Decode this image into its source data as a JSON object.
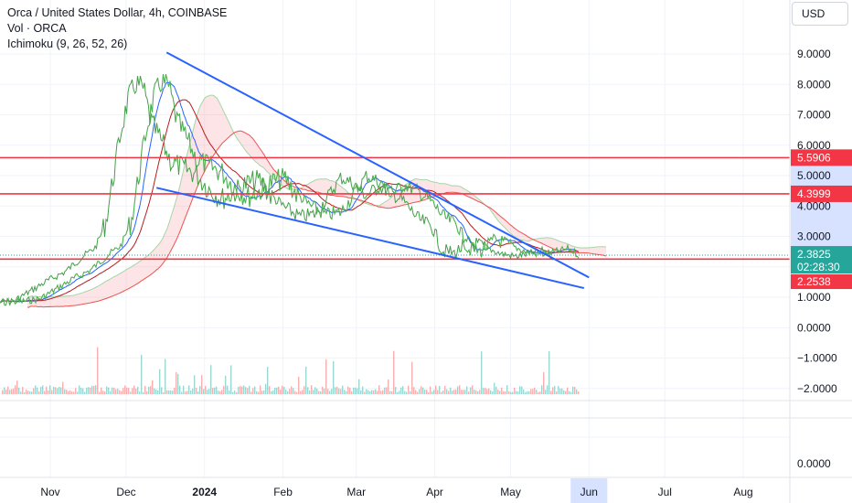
{
  "chart_data": {
    "type": "line",
    "title": "Orca / United States Dollar, 4h, COINBASE",
    "indicators": [
      "Vol · ORCA",
      "Ichimoku (9, 26, 52, 26)"
    ],
    "currency": "USD",
    "x_ticks": [
      "Nov",
      "Dec",
      "2024",
      "Feb",
      "Mar",
      "Apr",
      "May",
      "Jun",
      "Jul",
      "Aug"
    ],
    "y_ticks": [
      "9.0000",
      "8.0000",
      "7.0000",
      "6.0000",
      "5.0000",
      "4.0000",
      "3.0000",
      "1.0000",
      "0.0000",
      "−1.0000",
      "−2.0000"
    ],
    "lower_pane_ticks": [
      "0.0000"
    ],
    "price_series": {
      "name": "ORCA",
      "x": [
        "2023-10-20",
        "2023-10-28",
        "2023-11-04",
        "2023-11-10",
        "2023-11-17",
        "2023-11-24",
        "2023-11-29",
        "2023-12-03",
        "2023-12-06",
        "2023-12-09",
        "2023-12-12",
        "2023-12-15",
        "2023-12-18",
        "2023-12-21",
        "2023-12-25",
        "2023-12-29",
        "2024-01-03",
        "2024-01-08",
        "2024-01-13",
        "2024-01-18",
        "2024-01-23",
        "2024-01-28",
        "2024-02-02",
        "2024-02-07",
        "2024-02-12",
        "2024-02-18",
        "2024-02-24",
        "2024-03-01",
        "2024-03-05",
        "2024-03-10",
        "2024-03-15",
        "2024-03-20",
        "2024-03-25",
        "2024-03-30",
        "2024-04-05",
        "2024-04-10",
        "2024-04-14",
        "2024-04-19",
        "2024-04-25",
        "2024-05-01",
        "2024-05-07",
        "2024-05-13",
        "2024-05-19",
        "2024-05-24",
        "2024-05-28"
      ],
      "y": [
        0.85,
        0.95,
        1.3,
        1.6,
        1.9,
        2.4,
        2.7,
        3.5,
        5.0,
        6.5,
        7.6,
        8.1,
        7.9,
        6.8,
        6.2,
        5.5,
        5.3,
        5.1,
        4.6,
        4.3,
        4.5,
        4.8,
        4.9,
        4.3,
        4.0,
        3.7,
        3.8,
        4.5,
        5.0,
        4.8,
        4.4,
        4.7,
        4.5,
        4.2,
        3.6,
        3.4,
        2.6,
        2.5,
        2.9,
        2.7,
        2.5,
        2.4,
        2.5,
        2.6,
        2.3825
      ]
    },
    "horizontal_levels": [
      {
        "value": 5.5906,
        "label": "5.5906",
        "color": "#f23645"
      },
      {
        "value": 4.3999,
        "label": "4.3999",
        "color": "#f23645"
      },
      {
        "value": 2.2538,
        "label": "2.2538",
        "color": "#f23645"
      }
    ],
    "current_price": {
      "value": 2.3825,
      "label": "2.3825",
      "countdown": "02:28:30",
      "color": "#26a69a"
    },
    "trendlines": [
      {
        "from": [
          "2023-12-17",
          9.05
        ],
        "to": [
          "2024-06-01",
          1.65
        ],
        "color": "#2962ff"
      },
      {
        "from": [
          "2023-12-13",
          4.6
        ],
        "to": [
          "2024-05-30",
          1.3
        ],
        "color": "#2962ff"
      }
    ],
    "ylim": [
      -2.4,
      9.4
    ],
    "grid": true
  }
}
